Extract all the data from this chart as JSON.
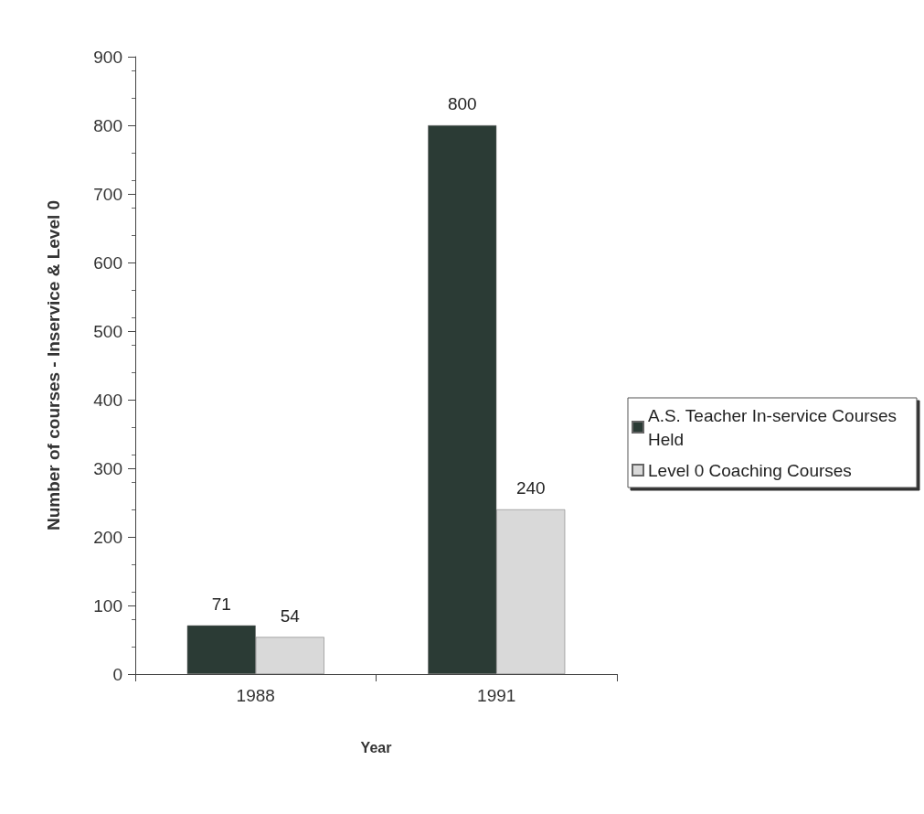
{
  "chart_data": {
    "type": "bar",
    "xlabel": "Year",
    "ylabel": "Number of courses - Inservice & Level 0",
    "categories": [
      "1988",
      "1991"
    ],
    "series": [
      {
        "name": "A.S. Teacher In-service Courses Held",
        "color": "#2b3b35",
        "values": [
          71,
          800
        ]
      },
      {
        "name": "Level 0 Coaching Courses",
        "color": "#d9d9d9",
        "values": [
          54,
          240
        ]
      }
    ],
    "ylim": [
      0,
      900
    ],
    "yticks": [
      0,
      100,
      200,
      300,
      400,
      500,
      600,
      700,
      800,
      900
    ],
    "data_labels": true,
    "grid": false,
    "legend": "right"
  }
}
